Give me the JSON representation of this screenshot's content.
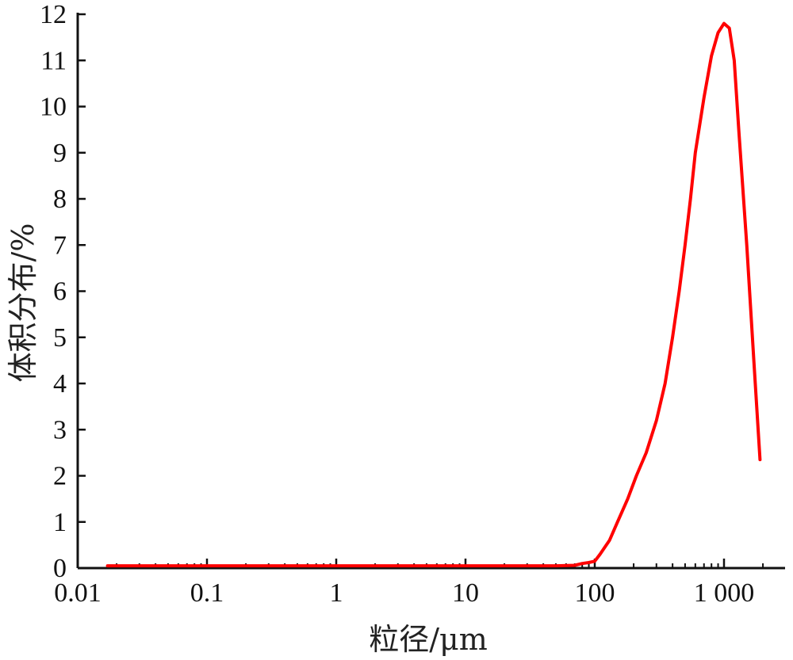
{
  "chart_data": {
    "type": "line",
    "title": "",
    "xlabel": "粒径/μm",
    "ylabel": "体积分布/%",
    "x_scale": "log",
    "xlim": [
      0.01,
      3000
    ],
    "ylim": [
      0,
      12
    ],
    "grid": false,
    "x_ticks": [
      0.01,
      0.1,
      1,
      10,
      100,
      1000
    ],
    "x_tick_labels": [
      "0.01",
      "0.1",
      "1",
      "10",
      "100",
      "1 000"
    ],
    "y_ticks": [
      0,
      1,
      2,
      3,
      4,
      5,
      6,
      7,
      8,
      9,
      10,
      11,
      12
    ],
    "y_tick_labels": [
      "0",
      "1",
      "2",
      "3",
      "4",
      "5",
      "6",
      "7",
      "8",
      "9",
      "10",
      "11",
      "12"
    ],
    "colors": {
      "series": "#ff0000",
      "axis": "#111111"
    },
    "series": [
      {
        "x": [
          0.017,
          0.1,
          1,
          10,
          50,
          70,
          80,
          90,
          100,
          110,
          130,
          150,
          180,
          210,
          250,
          300,
          350,
          400,
          450,
          500,
          550,
          600,
          700,
          800,
          900,
          1000,
          1100,
          1200,
          1300,
          1500,
          1700,
          1900
        ],
        "y": [
          0.05,
          0.05,
          0.05,
          0.05,
          0.05,
          0.06,
          0.1,
          0.12,
          0.15,
          0.3,
          0.6,
          1.0,
          1.5,
          2.0,
          2.5,
          3.2,
          4.0,
          5.0,
          6.0,
          7.0,
          8.0,
          9.0,
          10.2,
          11.1,
          11.6,
          11.8,
          11.7,
          11.0,
          9.5,
          7.0,
          4.5,
          2.35
        ]
      }
    ]
  }
}
